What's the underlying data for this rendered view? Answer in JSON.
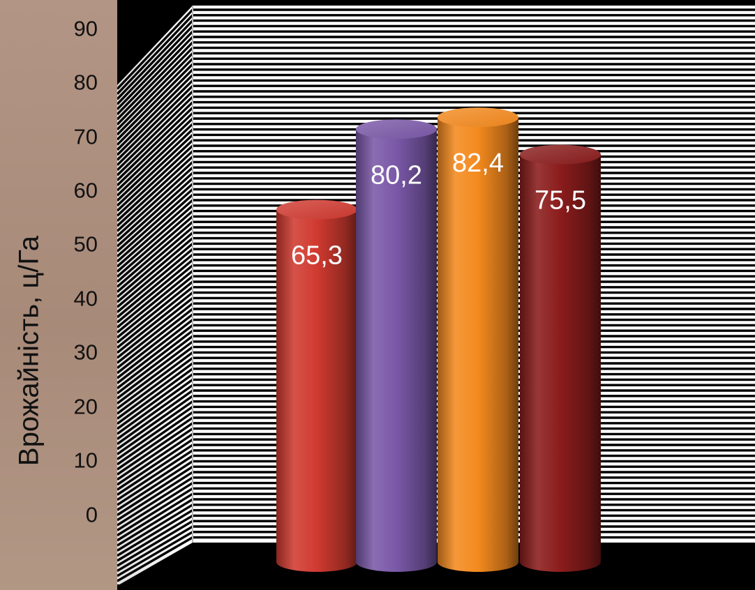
{
  "chart_data": {
    "type": "bar",
    "style": "3d-cylinder",
    "title": "",
    "xlabel": "",
    "ylabel": "Врожайність, ц/Га",
    "ylim": [
      0,
      90
    ],
    "yticks": [
      "0",
      "10",
      "20",
      "30",
      "40",
      "50",
      "60",
      "70",
      "80",
      "90"
    ],
    "values": [
      65.3,
      80.2,
      82.4,
      75.5
    ],
    "labels": [
      "65,3",
      "80,2",
      "82,4",
      "75,5"
    ],
    "colors": [
      "#d03a30",
      "#7a58a8",
      "#f48a1e",
      "#8b1c1c"
    ],
    "grid": true,
    "legend": "none"
  }
}
